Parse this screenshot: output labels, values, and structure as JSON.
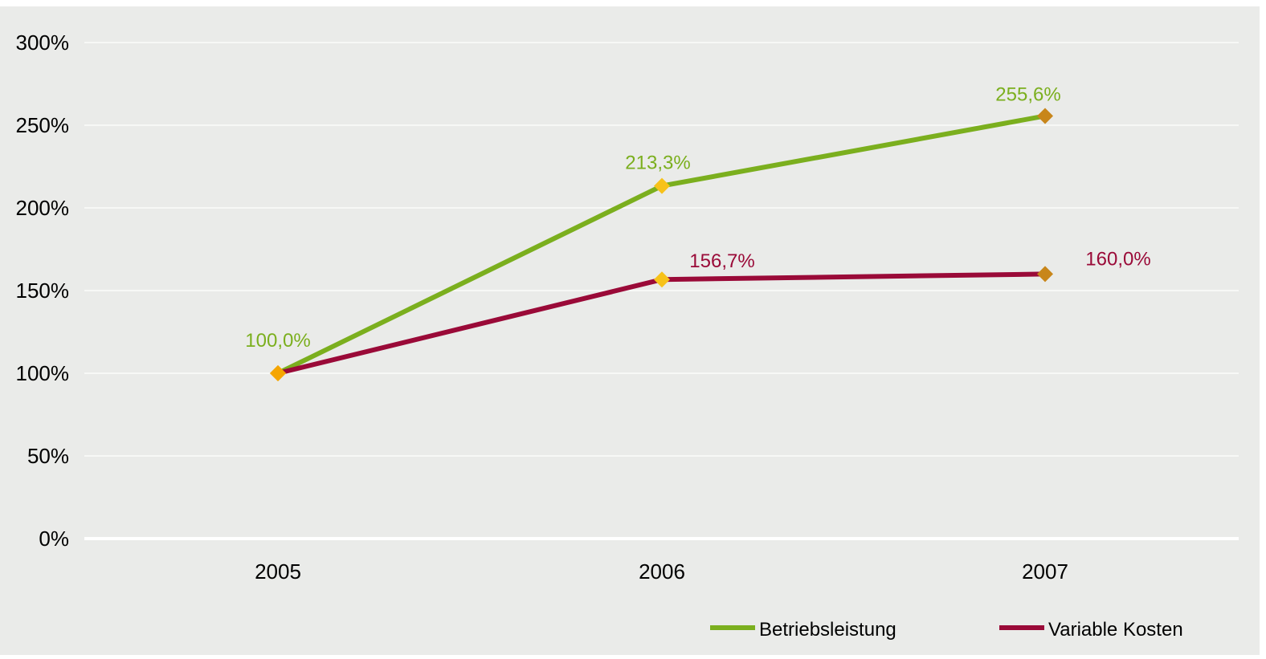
{
  "colors": {
    "background": "#EAEBE9",
    "gridline": "#FFFFFF",
    "series_1": "#7BAF1E",
    "series_2": "#9A0A38",
    "marker_2005": "#F5A500",
    "marker_2006": "#F7C21A",
    "marker_2007": "#C8861A",
    "axis_text": "#000000"
  },
  "chart_data": {
    "type": "line",
    "title": "",
    "xlabel": "",
    "ylabel": "",
    "categories": [
      "2005",
      "2006",
      "2007"
    ],
    "ylim": [
      0,
      300
    ],
    "yticks": [
      0,
      50,
      100,
      150,
      200,
      250,
      300
    ],
    "ytick_labels": [
      "0%",
      "50%",
      "100%",
      "150%",
      "200%",
      "250%",
      "300%"
    ],
    "grid": true,
    "legend_position": "bottom-right",
    "marker": "diamond",
    "series": [
      {
        "name": "Betriebsleistung",
        "values": [
          100.0,
          213.3,
          255.6
        ],
        "labels": [
          "100,0%",
          "213,3%",
          "255,6%"
        ],
        "color": "#7BAF1E"
      },
      {
        "name": "Variable Kosten",
        "values": [
          100.0,
          156.7,
          160.0
        ],
        "labels": [
          "",
          "156,7%",
          "160,0%"
        ],
        "color": "#9A0A38"
      }
    ]
  }
}
